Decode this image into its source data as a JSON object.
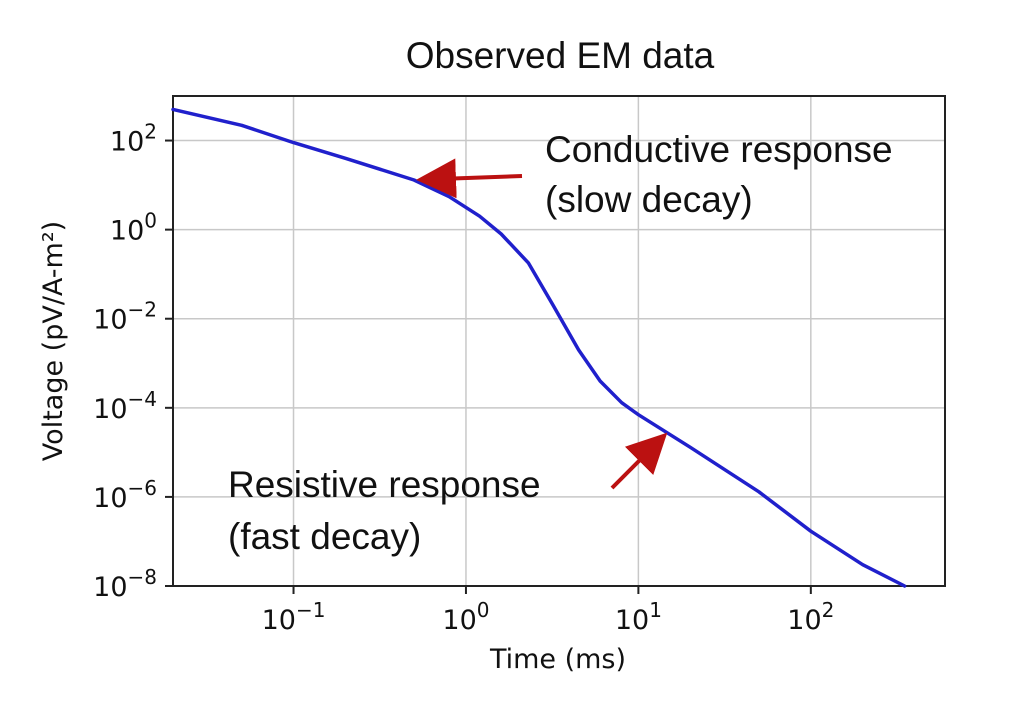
{
  "chart_data": {
    "type": "line",
    "title": "Observed EM data",
    "xlabel": "Time (ms)",
    "ylabel": "Voltage (pV/A-m²)",
    "x_scale": "log",
    "y_scale": "log",
    "xlim": [
      0.02,
      600
    ],
    "ylim": [
      1e-08,
      1000
    ],
    "x_ticks": [
      {
        "value": 0.1,
        "base": "10",
        "exp": "−1"
      },
      {
        "value": 1,
        "base": "10",
        "exp": "0"
      },
      {
        "value": 10,
        "base": "10",
        "exp": "1"
      },
      {
        "value": 100,
        "base": "10",
        "exp": "2"
      }
    ],
    "y_ticks": [
      {
        "value": 1e-08,
        "base": "10",
        "exp": "−8"
      },
      {
        "value": 1e-06,
        "base": "10",
        "exp": "−6"
      },
      {
        "value": 0.0001,
        "base": "10",
        "exp": "−4"
      },
      {
        "value": 0.01,
        "base": "10",
        "exp": "−2"
      },
      {
        "value": 1,
        "base": "10",
        "exp": "0"
      },
      {
        "value": 100,
        "base": "10",
        "exp": "2"
      }
    ],
    "grid": true,
    "colors": {
      "line": "#2020cc",
      "arrow": "#bb1111"
    },
    "series": [
      {
        "x": [
          0.02,
          0.05,
          0.1,
          0.2,
          0.5,
          0.8,
          1.2,
          1.6,
          2.3,
          3.2,
          4.5,
          6.0,
          8.0,
          10,
          20,
          50,
          100,
          200,
          350
        ],
        "y": [
          500,
          220,
          90,
          40,
          13,
          5.5,
          2.0,
          0.8,
          0.18,
          0.02,
          0.002,
          0.0004,
          0.00013,
          7e-05,
          1.3e-05,
          1.3e-06,
          1.7e-07,
          3e-08,
          1e-08
        ]
      }
    ],
    "annotations": [
      {
        "lines": [
          "Conductive response",
          "(slow decay)"
        ],
        "arrow_to": {
          "x": 0.5,
          "y": 13
        }
      },
      {
        "lines": [
          "Resistive response",
          "(fast decay)"
        ],
        "arrow_to": {
          "x": 15,
          "y": 3e-05
        }
      }
    ]
  }
}
